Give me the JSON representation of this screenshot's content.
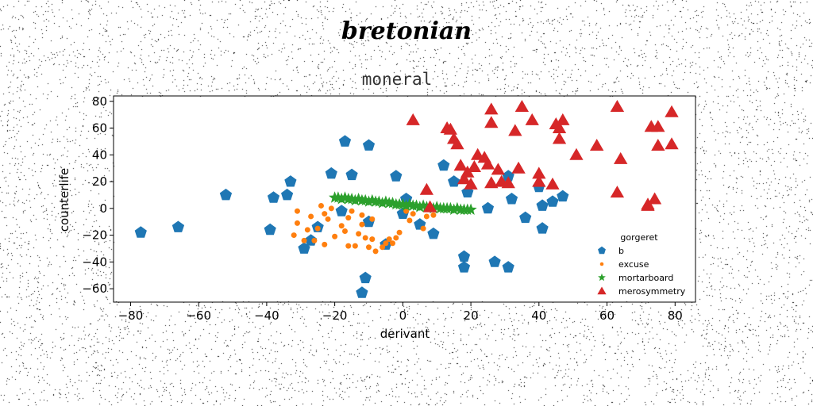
{
  "suptitle": "bretonian",
  "chart_data": {
    "type": "scatter",
    "title": "moneral",
    "xlabel": "derivant",
    "ylabel": "counterlife",
    "xlim": [
      -85,
      86
    ],
    "ylim": [
      -70,
      84
    ],
    "xticks": [
      -80,
      -60,
      -40,
      -20,
      0,
      20,
      40,
      60,
      80
    ],
    "xtick_labels": [
      "−80",
      "−60",
      "−40",
      "−20",
      "0",
      "20",
      "40",
      "60",
      "80"
    ],
    "yticks": [
      -60,
      -40,
      -20,
      0,
      20,
      40,
      60,
      80
    ],
    "ytick_labels": [
      "−60",
      "−40",
      "−20",
      "0",
      "20",
      "40",
      "60",
      "80"
    ],
    "grid": false,
    "legend": {
      "title": "gorgeret",
      "placement": "lower-right"
    },
    "series": [
      {
        "name": "b",
        "marker": "pentagon",
        "color": "#1f77b4",
        "points": [
          [
            -77,
            -18
          ],
          [
            -66,
            -14
          ],
          [
            -52,
            10
          ],
          [
            -39,
            -16
          ],
          [
            -38,
            8
          ],
          [
            -34,
            10
          ],
          [
            -33,
            20
          ],
          [
            -29,
            -30
          ],
          [
            -27,
            -24
          ],
          [
            -25,
            -14
          ],
          [
            -21,
            26
          ],
          [
            -18,
            -2
          ],
          [
            -17,
            50
          ],
          [
            -15,
            25
          ],
          [
            -12,
            -63
          ],
          [
            -11,
            -52
          ],
          [
            -10,
            47
          ],
          [
            -10,
            -10
          ],
          [
            -5,
            -27
          ],
          [
            -2,
            24
          ],
          [
            0,
            -4
          ],
          [
            1,
            7
          ],
          [
            5,
            -12
          ],
          [
            9,
            -19
          ],
          [
            12,
            32
          ],
          [
            15,
            20
          ],
          [
            18,
            -36
          ],
          [
            18,
            -44
          ],
          [
            19,
            12
          ],
          [
            25,
            0
          ],
          [
            27,
            -40
          ],
          [
            31,
            -44
          ],
          [
            31,
            24
          ],
          [
            32,
            7
          ],
          [
            36,
            -7
          ],
          [
            40,
            16
          ],
          [
            41,
            2
          ],
          [
            41,
            -15
          ],
          [
            44,
            5
          ],
          [
            47,
            9
          ]
        ]
      },
      {
        "name": "excuse",
        "marker": "circle",
        "color": "#ff7f0e",
        "points": [
          [
            -32,
            -20
          ],
          [
            -31,
            -2
          ],
          [
            -31,
            -11
          ],
          [
            -29,
            -24
          ],
          [
            -28,
            -16
          ],
          [
            -27,
            -6
          ],
          [
            -26,
            -24
          ],
          [
            -25,
            -15
          ],
          [
            -24,
            2
          ],
          [
            -23,
            -4
          ],
          [
            -23,
            -27
          ],
          [
            -22,
            -8
          ],
          [
            -21,
            0
          ],
          [
            -20,
            -21
          ],
          [
            -18,
            -13
          ],
          [
            -17,
            -17
          ],
          [
            -16,
            -28
          ],
          [
            -16,
            -7
          ],
          [
            -14,
            -28
          ],
          [
            -13,
            -19
          ],
          [
            -12,
            -12
          ],
          [
            -11,
            -22
          ],
          [
            -10,
            -29
          ],
          [
            -9,
            -23
          ],
          [
            -9,
            -8
          ],
          [
            -8,
            -32
          ],
          [
            -6,
            -29
          ],
          [
            -5,
            -26
          ],
          [
            -4,
            -23
          ],
          [
            -3,
            -26
          ],
          [
            -2,
            -22
          ],
          [
            -1,
            -18
          ],
          [
            1,
            -2
          ],
          [
            2,
            -9
          ],
          [
            3,
            -4
          ],
          [
            6,
            -15
          ],
          [
            7,
            -6
          ],
          [
            9,
            -5
          ],
          [
            -12,
            -5
          ],
          [
            -15,
            -2
          ]
        ]
      },
      {
        "name": "mortarboard",
        "marker": "star",
        "color": "#2ca02c",
        "points": [
          [
            -20,
            8
          ],
          [
            -19,
            8
          ],
          [
            -18,
            7
          ],
          [
            -17,
            8
          ],
          [
            -16,
            7
          ],
          [
            -15,
            7
          ],
          [
            -14,
            6
          ],
          [
            -13,
            7
          ],
          [
            -12,
            6
          ],
          [
            -11,
            6
          ],
          [
            -10,
            5
          ],
          [
            -9,
            6
          ],
          [
            -8,
            5
          ],
          [
            -7,
            5
          ],
          [
            -6,
            4
          ],
          [
            -5,
            5
          ],
          [
            -4,
            4
          ],
          [
            -3,
            4
          ],
          [
            -2,
            3
          ],
          [
            -1,
            3
          ],
          [
            0,
            3
          ],
          [
            1,
            2
          ],
          [
            2,
            3
          ],
          [
            3,
            2
          ],
          [
            4,
            2
          ],
          [
            5,
            1
          ],
          [
            6,
            2
          ],
          [
            7,
            1
          ],
          [
            8,
            1
          ],
          [
            9,
            0
          ],
          [
            10,
            1
          ],
          [
            11,
            0
          ],
          [
            12,
            0
          ],
          [
            13,
            0
          ],
          [
            14,
            0
          ],
          [
            15,
            -1
          ],
          [
            16,
            0
          ],
          [
            17,
            -1
          ],
          [
            18,
            -1
          ],
          [
            19,
            -1
          ],
          [
            20,
            -1
          ]
        ]
      },
      {
        "name": "merosymmetry",
        "marker": "triangle",
        "color": "#d62728",
        "points": [
          [
            3,
            66
          ],
          [
            7,
            14
          ],
          [
            8,
            1
          ],
          [
            13,
            60
          ],
          [
            14,
            59
          ],
          [
            15,
            52
          ],
          [
            16,
            48
          ],
          [
            17,
            32
          ],
          [
            18,
            22
          ],
          [
            19,
            27
          ],
          [
            20,
            18
          ],
          [
            21,
            31
          ],
          [
            22,
            40
          ],
          [
            24,
            38
          ],
          [
            25,
            33
          ],
          [
            26,
            19
          ],
          [
            26,
            74
          ],
          [
            26,
            64
          ],
          [
            28,
            29
          ],
          [
            29,
            20
          ],
          [
            31,
            19
          ],
          [
            33,
            58
          ],
          [
            34,
            30
          ],
          [
            35,
            76
          ],
          [
            38,
            66
          ],
          [
            40,
            26
          ],
          [
            40,
            20
          ],
          [
            44,
            18
          ],
          [
            45,
            63
          ],
          [
            46,
            52
          ],
          [
            46,
            60
          ],
          [
            47,
            66
          ],
          [
            51,
            40
          ],
          [
            57,
            47
          ],
          [
            63,
            76
          ],
          [
            64,
            37
          ],
          [
            63,
            12
          ],
          [
            72,
            3
          ],
          [
            73,
            61
          ],
          [
            74,
            7
          ],
          [
            75,
            61
          ],
          [
            75,
            47
          ],
          [
            79,
            72
          ],
          [
            79,
            48
          ],
          [
            72,
            2
          ]
        ]
      }
    ]
  }
}
